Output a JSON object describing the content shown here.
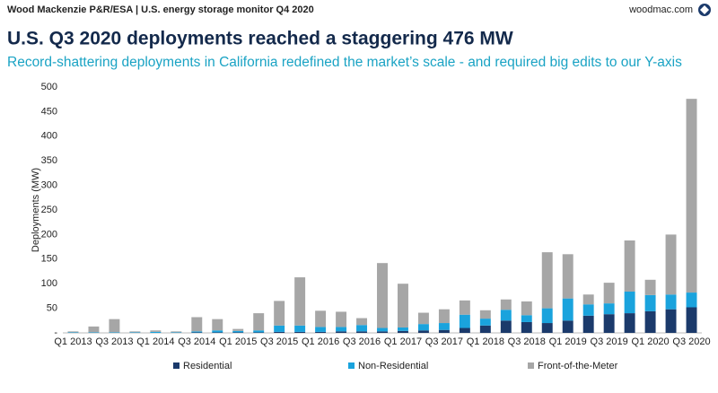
{
  "header": "Wood Mackenzie P&R/ESA | U.S. energy storage monitor Q4 2020",
  "site": "woodmac.com",
  "chart_data": {
    "type": "stacked_bar",
    "title": "U.S. Q3 2020 deployments reached a staggering 476 MW",
    "subtitle": "Record-shattering deployments in California redefined the market’s scale - and required big edits to our Y-axis",
    "y_label": "Deployments (MW)",
    "categories": [
      "Q1 2013",
      null,
      "Q3 2013",
      null,
      "Q1 2014",
      null,
      "Q3 2014",
      null,
      "Q1 2015",
      null,
      "Q3 2015",
      null,
      "Q1 2016",
      null,
      "Q3 2016",
      null,
      "Q1 2017",
      null,
      "Q3 2017",
      null,
      "Q1 2018",
      null,
      "Q3 2018",
      null,
      "Q1 2019",
      null,
      "Q3 2019",
      null,
      "Q1 2020",
      null,
      "Q3 2020"
    ],
    "series": [
      {
        "name": "Residential",
        "color": "#1b3a6b",
        "values": [
          0,
          0,
          0,
          0,
          0,
          0,
          1,
          1,
          1,
          1,
          2,
          2,
          2,
          3,
          3,
          3,
          4,
          5,
          6,
          10,
          15,
          25,
          22,
          20,
          25,
          35,
          38,
          40,
          44,
          48,
          52
        ]
      },
      {
        "name": "Non-Residential",
        "color": "#1aa3dd",
        "values": [
          1,
          1,
          1,
          1,
          2,
          1,
          2,
          4,
          3,
          4,
          13,
          13,
          10,
          9,
          13,
          7,
          7,
          13,
          14,
          27,
          14,
          22,
          14,
          30,
          45,
          23,
          22,
          44,
          33,
          30,
          30
        ]
      },
      {
        "name": "Front-of-the-Meter",
        "color": "#a6a6a6",
        "values": [
          2,
          12,
          27,
          2,
          3,
          2,
          29,
          23,
          4,
          35,
          50,
          98,
          33,
          31,
          14,
          132,
          89,
          23,
          28,
          29,
          17,
          21,
          28,
          114,
          90,
          20,
          42,
          104,
          31,
          122,
          394
        ]
      }
    ],
    "ylim": [
      0,
      500
    ],
    "yticks": [
      {
        "value": 0,
        "label": "-"
      },
      50,
      100,
      150,
      200,
      250,
      300,
      350,
      400,
      450,
      500
    ],
    "legend": "bottom"
  }
}
